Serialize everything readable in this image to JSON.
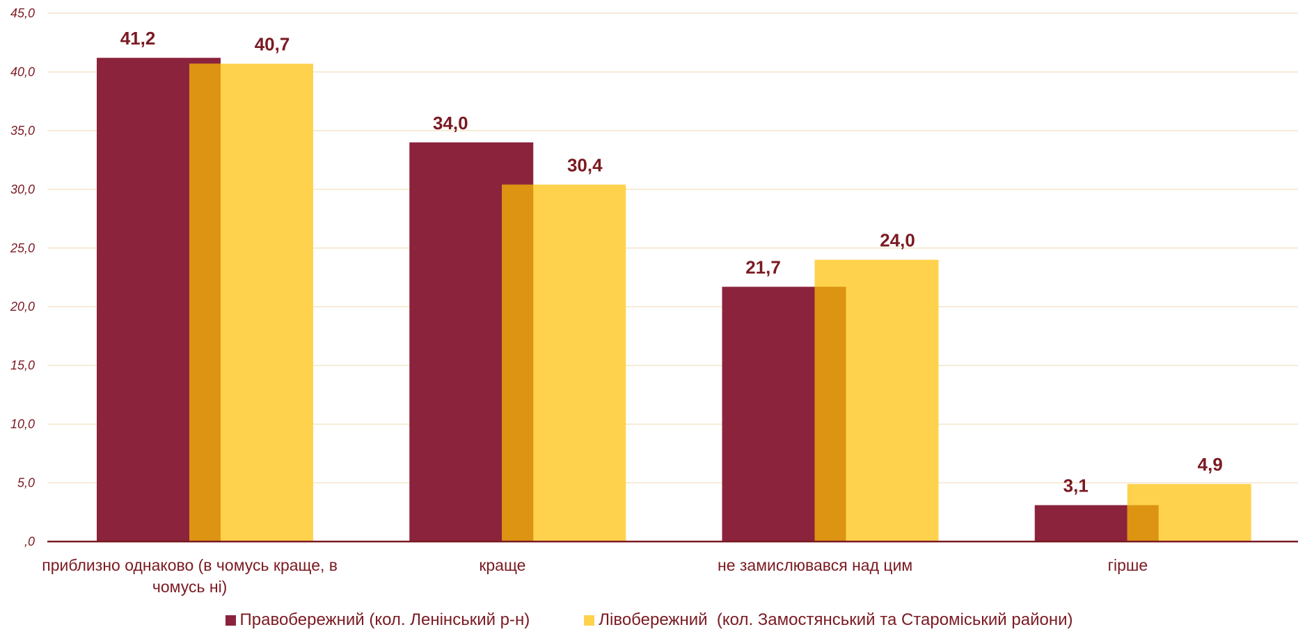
{
  "chart_data": {
    "type": "bar",
    "categories": [
      "приблизно однаково (в чомусь краще, в чомусь ні)",
      "краще",
      "не замислювався над цим",
      "гірше"
    ],
    "category_lines": [
      [
        "приблизно однаково (в чомусь краще, в",
        "чомусь ні)"
      ],
      [
        "краще"
      ],
      [
        "не замислювався над цим"
      ],
      [
        "гірше"
      ]
    ],
    "series": [
      {
        "name": "Правобережний (кол. Ленінський р-н)",
        "values": [
          41.2,
          34.0,
          21.7,
          3.1
        ],
        "labels": [
          "41,2",
          "34,0",
          "21,7",
          "3,1"
        ],
        "color": "#8b233c"
      },
      {
        "name": "Лівобережний  (кол. Замостянський та Староміський райони)",
        "values": [
          40.7,
          30.4,
          24.0,
          4.9
        ],
        "labels": [
          "40,7",
          "30,4",
          "24,0",
          "4,9"
        ],
        "color": "#ffd24d"
      }
    ],
    "overlap_color": "#dc9412",
    "ylim": [
      0,
      45
    ],
    "y_ticks": [
      0,
      5,
      10,
      15,
      20,
      25,
      30,
      35,
      40,
      45
    ],
    "y_tick_labels": [
      ",0",
      "5,0",
      "10,0",
      "15,0",
      "20,0",
      "25,0",
      "30,0",
      "35,0",
      "40,0",
      "45,0"
    ],
    "grid": true,
    "legend_position": "bottom",
    "title": "",
    "xlabel": "",
    "ylabel": ""
  }
}
